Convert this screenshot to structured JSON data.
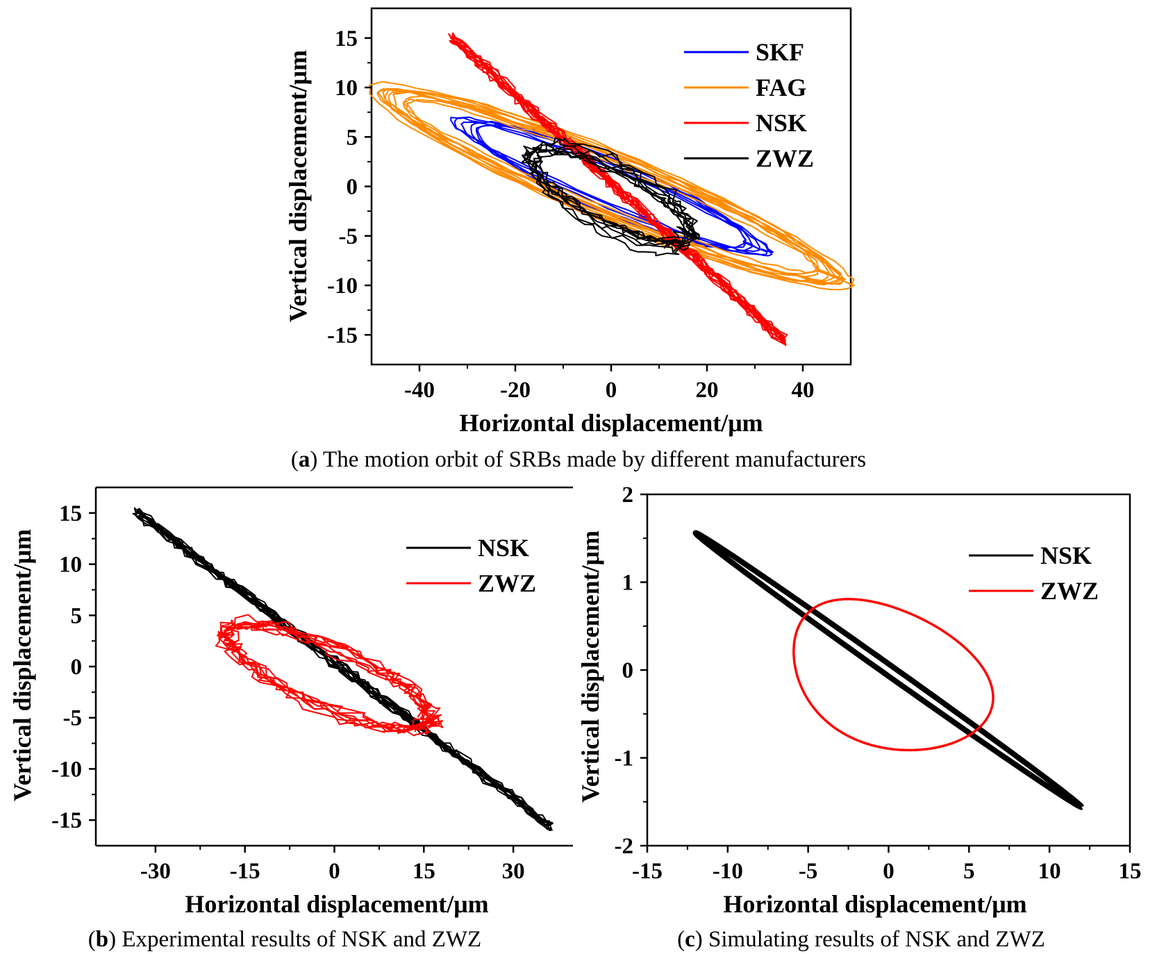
{
  "chart_data": [
    {
      "id": "a",
      "type": "line",
      "xlabel": "Horizontal displacement/μm",
      "ylabel": "Vertical displacement/μm",
      "xlim": [
        -50,
        50
      ],
      "ylim": [
        -18,
        18
      ],
      "xticks": [
        -40,
        -20,
        0,
        20,
        40
      ],
      "yticks": [
        15,
        10,
        5,
        0,
        -5,
        -10,
        -15
      ],
      "caption": {
        "prefix": "(",
        "letter": "a",
        "text": ") The motion orbit of SRBs made by different manufacturers"
      },
      "series": [
        {
          "name": "SKF",
          "color": "#0000ff",
          "kind": "orbit",
          "a": 33,
          "b": 2.2,
          "cx": 0,
          "cy": 0,
          "rot": -0.262,
          "loops": 6,
          "jitter": 0.06
        },
        {
          "name": "FAG",
          "color": "#ff8c00",
          "kind": "orbit",
          "a": 47,
          "b": 3.0,
          "cx": 0,
          "cy": 0,
          "rot": -0.255,
          "loops": 10,
          "jitter": 0.08
        },
        {
          "name": "NSK",
          "color": "#ff0000",
          "kind": "band",
          "from": [
            -33,
            15
          ],
          "to": [
            36,
            -15.5
          ],
          "loops": 14,
          "jitter": 0.6
        },
        {
          "name": "ZWZ",
          "color": "#000000",
          "kind": "orbit",
          "a": 17,
          "b": 3.5,
          "cx": 0,
          "cy": -1,
          "rot": -0.3,
          "loops": 8,
          "jitter": 0.25
        }
      ]
    },
    {
      "id": "b",
      "type": "line",
      "xlabel": "Horizontal displacement/μm",
      "ylabel": "Vertical displacement/μm",
      "xlim": [
        -40,
        40
      ],
      "ylim": [
        -17.5,
        17.5
      ],
      "xticks": [
        -30,
        -15,
        0,
        15,
        30
      ],
      "yticks": [
        15,
        10,
        5,
        0,
        -5,
        -10,
        -15
      ],
      "caption": {
        "prefix": "(",
        "letter": "b",
        "text": ") Experimental results of NSK and ZWZ"
      },
      "series": [
        {
          "name": "NSK",
          "color": "#000000",
          "kind": "band",
          "from": [
            -33,
            15
          ],
          "to": [
            36,
            -15.5
          ],
          "loops": 14,
          "jitter": 0.5
        },
        {
          "name": "ZWZ",
          "color": "#ff0000",
          "kind": "orbit",
          "a": 17,
          "b": 3.5,
          "cx": -1,
          "cy": -1,
          "rot": -0.32,
          "loops": 8,
          "jitter": 0.3
        }
      ]
    },
    {
      "id": "c",
      "type": "line",
      "xlabel": "Horizontal displacement/μm",
      "ylabel": "Vertical displacement/μm",
      "xlim": [
        -15,
        15
      ],
      "ylim": [
        -2,
        2
      ],
      "xticks": [
        -15,
        -10,
        -5,
        0,
        5,
        10,
        15
      ],
      "yticks": [
        2,
        1,
        0,
        -1,
        -2
      ],
      "caption": {
        "prefix": "(",
        "letter": "c",
        "text": ") Simulating results of NSK and ZWZ"
      },
      "series": [
        {
          "name": "NSK",
          "color": "#000000",
          "kind": "simNSK"
        },
        {
          "name": "ZWZ",
          "color": "#ff0000",
          "kind": "simZWZ"
        }
      ]
    }
  ]
}
